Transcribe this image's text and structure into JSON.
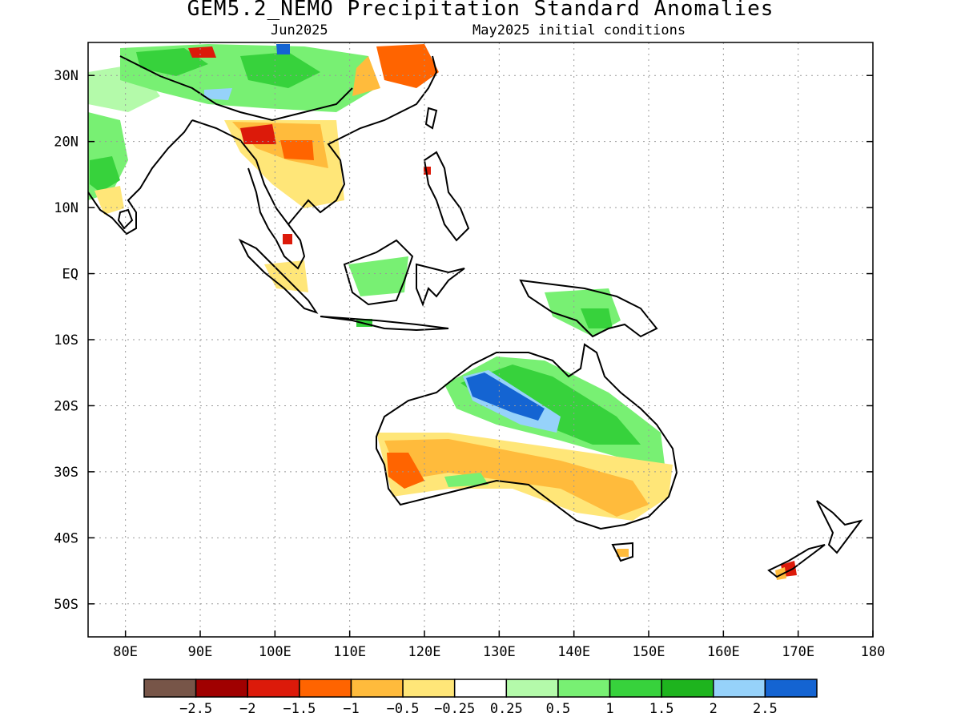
{
  "title": "GEM5.2_NEMO Precipitation Standard Anomalies",
  "subtitle_left": "Jun2025",
  "subtitle_right": "May2025 initial conditions",
  "map": {
    "lon_range": [
      75,
      180
    ],
    "lat_range": [
      -55,
      35
    ],
    "lon_ticks": [
      {
        "value": 80,
        "label": "80E"
      },
      {
        "value": 90,
        "label": "90E"
      },
      {
        "value": 100,
        "label": "100E"
      },
      {
        "value": 110,
        "label": "110E"
      },
      {
        "value": 120,
        "label": "120E"
      },
      {
        "value": 130,
        "label": "130E"
      },
      {
        "value": 140,
        "label": "140E"
      },
      {
        "value": 150,
        "label": "150E"
      },
      {
        "value": 160,
        "label": "160E"
      },
      {
        "value": 170,
        "label": "170E"
      },
      {
        "value": 180,
        "label": "180"
      }
    ],
    "lat_ticks": [
      {
        "value": 30,
        "label": "30N"
      },
      {
        "value": 20,
        "label": "20N"
      },
      {
        "value": 10,
        "label": "10N"
      },
      {
        "value": 0,
        "label": "EQ"
      },
      {
        "value": -10,
        "label": "10S"
      },
      {
        "value": -20,
        "label": "20S"
      },
      {
        "value": -30,
        "label": "30S"
      },
      {
        "value": -40,
        "label": "40S"
      },
      {
        "value": -50,
        "label": "50S"
      }
    ],
    "grid": true
  },
  "colorbar": {
    "colors": [
      "#775548",
      "#a00000",
      "#dc1a0a",
      "#ff6400",
      "#ffbb3c",
      "#ffe678",
      "#ffffff",
      "#b4faaa",
      "#78f073",
      "#37d23c",
      "#1eb41e",
      "#96d2fa",
      "#1464d2"
    ],
    "labels": [
      "−2.5",
      "−2",
      "−1.5",
      "−1",
      "−0.5",
      "−0.25",
      "0.25",
      "0.5",
      "1",
      "1.5",
      "2",
      "2.5"
    ]
  }
}
